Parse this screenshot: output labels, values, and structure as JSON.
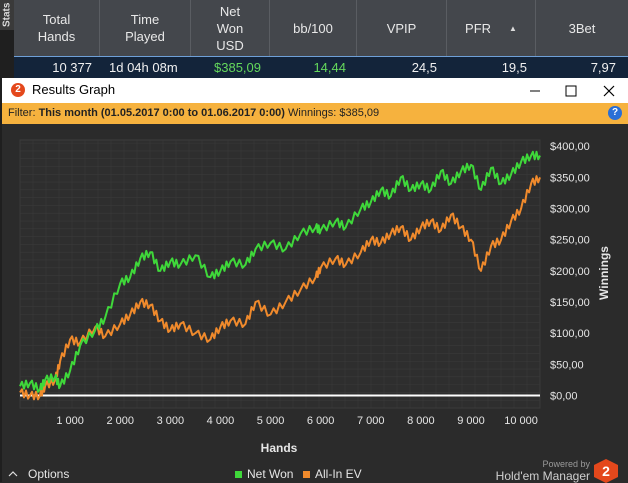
{
  "side_tab": {
    "label": "Stats"
  },
  "stats_table": {
    "headers": [
      "Total Hands",
      "Time Played",
      "Net Won USD",
      "bb/100",
      "VPIP",
      "PFR",
      "3Bet"
    ],
    "row": [
      "10 377",
      "1d 04h 08m",
      "$385,09",
      "14,44",
      "24,5",
      "19,5",
      "7,97"
    ]
  },
  "window": {
    "title": "Results Graph",
    "app_icon": "2",
    "minimize_icon": "minimize-icon",
    "maximize_icon": "maximize-icon",
    "close_icon": "close-icon"
  },
  "filter": {
    "label_prefix": "Filter: ",
    "range": "This month (01.05.2017 0:00 to 01.06.2017 0:00)",
    "winnings": " Winnings: $385,09",
    "help_icon": "?"
  },
  "chart_data": {
    "type": "line",
    "xlabel": "Hands",
    "ylabel": "Winnings",
    "xlim": [
      0,
      10377
    ],
    "ylim": [
      -20,
      410
    ],
    "x_ticks": [
      1000,
      2000,
      3000,
      4000,
      5000,
      6000,
      7000,
      8000,
      9000,
      10000
    ],
    "x_tick_labels": [
      "1 000",
      "2 000",
      "3 000",
      "4 000",
      "5 000",
      "6 000",
      "7 000",
      "8 000",
      "9 000",
      "10 000"
    ],
    "y_ticks": [
      0,
      50,
      100,
      150,
      200,
      250,
      300,
      350,
      400
    ],
    "y_tick_labels": [
      "$0,00",
      "$50,00",
      "$100,00",
      "$150,00",
      "$200,00",
      "$250,00",
      "$300,00",
      "$350,00",
      "$400,00"
    ],
    "grid": true,
    "legend_position": "bottom",
    "series": [
      {
        "name": "Net Won",
        "color": "#3fd83a",
        "x": [
          0,
          200,
          400,
          500,
          700,
          800,
          1000,
          1200,
          1500,
          1700,
          2000,
          2200,
          2400,
          2600,
          2800,
          3000,
          3200,
          3500,
          3800,
          4000,
          4200,
          4500,
          4700,
          5000,
          5300,
          5600,
          5900,
          6000,
          6300,
          6500,
          6800,
          7000,
          7200,
          7400,
          7600,
          7800,
          8000,
          8200,
          8400,
          8600,
          8800,
          9000,
          9200,
          9400,
          9600,
          9800,
          10000,
          10200,
          10377
        ],
        "values": [
          15,
          20,
          10,
          25,
          30,
          15,
          40,
          80,
          105,
          125,
          180,
          190,
          220,
          230,
          200,
          215,
          210,
          225,
          190,
          200,
          215,
          210,
          235,
          245,
          235,
          260,
          270,
          265,
          280,
          270,
          300,
          310,
          330,
          320,
          350,
          330,
          340,
          330,
          360,
          340,
          360,
          370,
          330,
          365,
          340,
          355,
          375,
          385,
          385
        ]
      },
      {
        "name": "All-In EV",
        "color": "#f08a2c",
        "x": [
          0,
          200,
          400,
          500,
          700,
          800,
          1000,
          1200,
          1500,
          1700,
          2000,
          2200,
          2400,
          2600,
          2800,
          3000,
          3200,
          3500,
          3800,
          4000,
          4200,
          4500,
          4700,
          5000,
          5300,
          5600,
          5900,
          6000,
          6300,
          6500,
          6800,
          7000,
          7200,
          7400,
          7600,
          7800,
          8000,
          8200,
          8400,
          8600,
          8800,
          9000,
          9200,
          9400,
          9600,
          9800,
          10000,
          10200,
          10377
        ],
        "values": [
          5,
          0,
          0,
          15,
          25,
          55,
          90,
          85,
          110,
          95,
          115,
          130,
          150,
          145,
          120,
          105,
          115,
          100,
          90,
          110,
          120,
          115,
          150,
          130,
          150,
          170,
          190,
          205,
          220,
          210,
          230,
          250,
          245,
          260,
          270,
          250,
          270,
          280,
          265,
          290,
          270,
          250,
          200,
          240,
          250,
          280,
          300,
          340,
          350
        ]
      }
    ]
  },
  "legend": {
    "net_won": "Net Won",
    "all_in_ev": "All-In EV"
  },
  "options": {
    "label": "Options"
  },
  "branding": {
    "powered_by": "Powered by",
    "name": "Hold'em Manager",
    "logo": "2"
  }
}
